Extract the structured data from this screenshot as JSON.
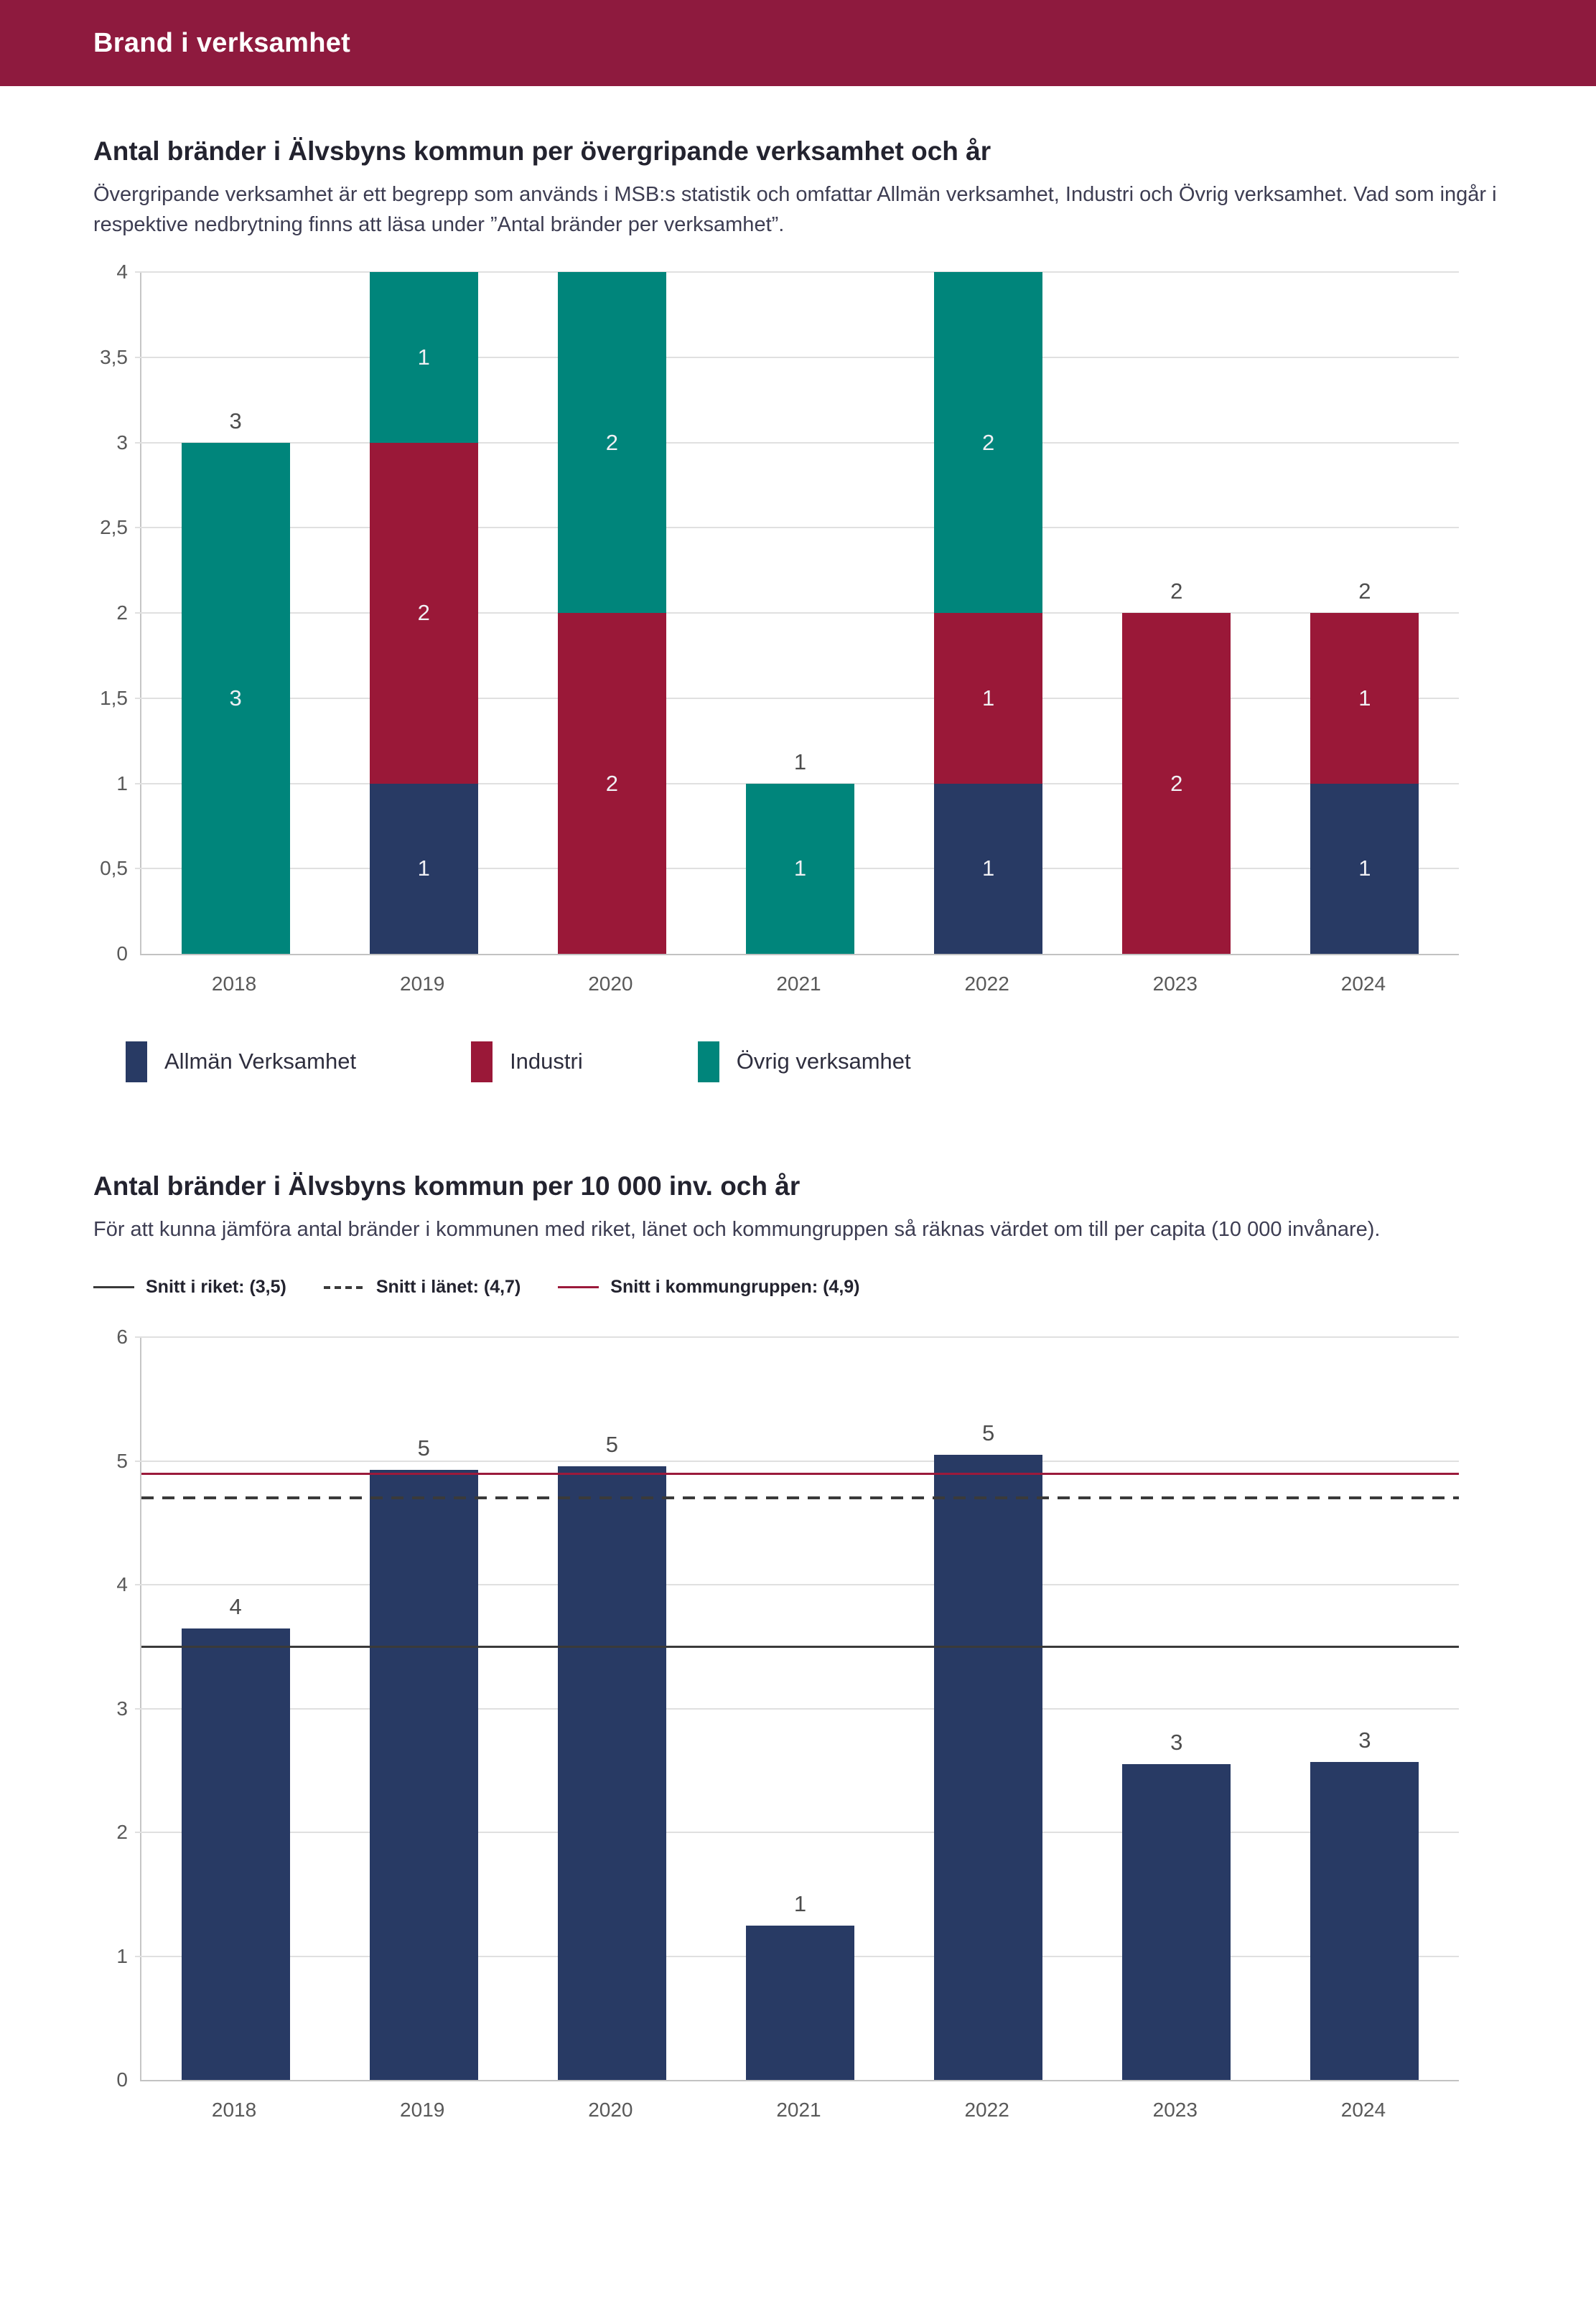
{
  "page": {
    "header_title": "Brand i verksamhet"
  },
  "colors": {
    "header_bg": "#8E1A3E",
    "navy": "#283A64",
    "maroon": "#9A1838",
    "teal": "#00857B",
    "grid": "#E0E0E0",
    "axis": "#C6C6C6",
    "tick_text": "#595959",
    "segment_label_text": "#F0F0F4",
    "total_label_text": "#4D4D4D"
  },
  "section1": {
    "description": "Övergripande verksamhet är ett begrepp som används i MSB:s statistik och omfattar Allmän verksamhet, Industri och Övrig verksamhet. Vad som ingår i respektive nedbrytning finns att läsa under ”Antal bränder per verksamhet”."
  },
  "section2": {
    "description": "För att kunna jämföra antal bränder i kommunen med riket, länet och kommungruppen så räknas värdet om till per capita (10 000 invånare)."
  },
  "chart_data": [
    {
      "type": "bar",
      "stacked": true,
      "title": "Antal bränder i Älvsbyns kommun per övergripande verksamhet och år",
      "categories": [
        "2018",
        "2019",
        "2020",
        "2021",
        "2022",
        "2023",
        "2024"
      ],
      "series": [
        {
          "name": "Allmän Verksamhet",
          "color": "#283A64",
          "values": [
            0,
            1,
            0,
            0,
            1,
            0,
            1
          ]
        },
        {
          "name": "Industri",
          "color": "#9A1838",
          "values": [
            0,
            2,
            2,
            0,
            1,
            2,
            1
          ]
        },
        {
          "name": "Övrig verksamhet",
          "color": "#00857B",
          "values": [
            3,
            1,
            2,
            1,
            2,
            0,
            0
          ]
        }
      ],
      "totals": [
        3,
        4,
        4,
        1,
        4,
        2,
        2
      ],
      "total_labels": [
        "3",
        "",
        "",
        "1",
        "",
        "2",
        "2"
      ],
      "ylim": [
        0,
        4
      ],
      "ytick_step": 0.5,
      "ytick_labels": [
        "0",
        "0,5",
        "1",
        "1,5",
        "2",
        "2,5",
        "3",
        "3,5",
        "4"
      ],
      "grid": true,
      "legend_position": "bottom"
    },
    {
      "type": "bar",
      "stacked": false,
      "title": "Antal bränder i Älvsbyns kommun per 10 000 inv. och år",
      "categories": [
        "2018",
        "2019",
        "2020",
        "2021",
        "2022",
        "2023",
        "2024"
      ],
      "values": [
        3.65,
        4.93,
        4.96,
        1.25,
        5.05,
        2.55,
        2.57
      ],
      "bar_labels": [
        "4",
        "5",
        "5",
        "1",
        "5",
        "3",
        "3"
      ],
      "bar_color": "#283A64",
      "ylim": [
        0,
        6
      ],
      "ytick_step": 1,
      "ytick_labels": [
        "0",
        "1",
        "2",
        "3",
        "4",
        "5",
        "6"
      ],
      "grid": true,
      "legend_position": "top",
      "ref_lines": [
        {
          "label": "Snitt i riket: (3,5)",
          "value": 3.5,
          "style": "solid",
          "color": "#3A3A3A"
        },
        {
          "label": "Snitt i länet: (4,7)",
          "value": 4.7,
          "style": "dashed",
          "color": "#3A3A3A"
        },
        {
          "label": "Snitt i kommungruppen: (4,9)",
          "value": 4.9,
          "style": "solid",
          "color": "#9B1A3B"
        }
      ]
    }
  ]
}
